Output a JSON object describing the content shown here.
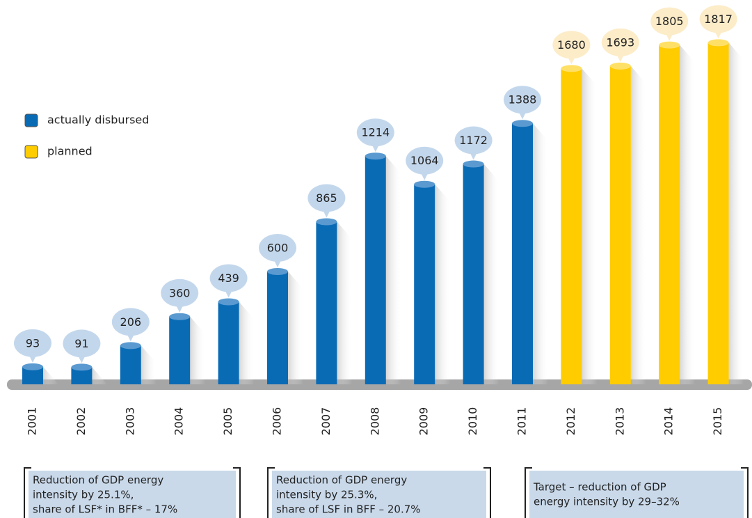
{
  "chart_data": {
    "type": "bar",
    "categories": [
      "2001",
      "2002",
      "2003",
      "2004",
      "2005",
      "2006",
      "2007",
      "2008",
      "2009",
      "2010",
      "2011",
      "2012",
      "2013",
      "2014",
      "2015"
    ],
    "series": [
      {
        "name": "actually disbursed",
        "color": "#0a6bb5",
        "values": [
          93,
          91,
          206,
          360,
          439,
          600,
          865,
          1214,
          1064,
          1172,
          1388,
          null,
          null,
          null,
          null
        ]
      },
      {
        "name": "planned",
        "color": "#ffcc00",
        "values": [
          null,
          null,
          null,
          null,
          null,
          null,
          null,
          null,
          null,
          null,
          null,
          1680,
          1693,
          1805,
          1817
        ]
      }
    ],
    "annotations": [
      [
        "Reduction of GDP energy",
        "intensity by 25.1%,",
        "share of LSF* in BFF* – 17%"
      ],
      [
        "Reduction of GDP energy",
        "intensity by 25.3%,",
        "share of LSF in BFF – 20.7%"
      ],
      [
        "Target – reduction of GDP",
        "energy intensity by 29–32%"
      ]
    ]
  }
}
